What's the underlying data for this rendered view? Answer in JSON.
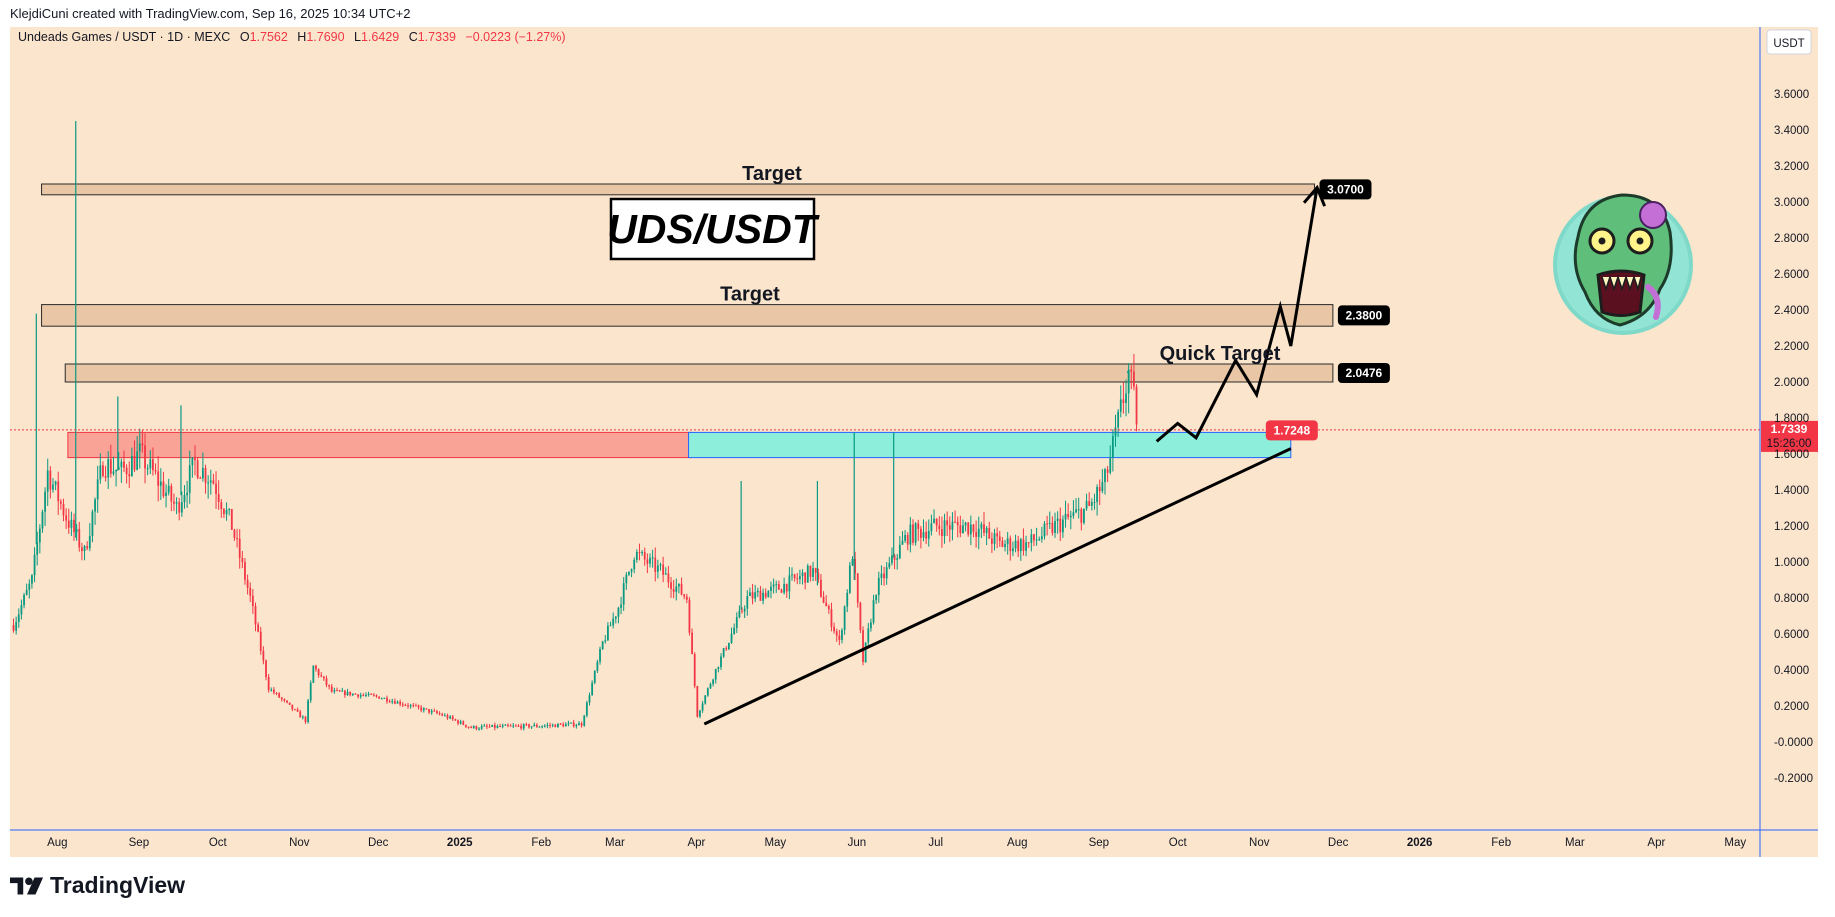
{
  "credit": "KlejdiCuni created with TradingView.com, Sep 16, 2025 10:34 UTC+2",
  "brand": "TradingView",
  "legend": {
    "symbol": "Undeads Games / USDT · 1D · MEXC",
    "open_label": "O",
    "open": "1.7562",
    "high_label": "H",
    "high": "1.7690",
    "low_label": "L",
    "low": "1.6429",
    "close_label": "C",
    "close": "1.7339",
    "change": "−0.0223 (−1.27%)"
  },
  "currency": "USDT",
  "colors": {
    "background": "#fbe5cc",
    "up": "#089981",
    "down": "#f23645",
    "supply_zone": "#f8a396",
    "demand_zone": "#8ceedb",
    "target_band": "#e8c6a6",
    "axis_line": "#2962ff"
  },
  "chart_data": {
    "type": "candlestick",
    "x_ticks": [
      "Aug",
      "Sep",
      "Oct",
      "Nov",
      "Dec",
      "2025",
      "Feb",
      "Mar",
      "Apr",
      "May",
      "Jun",
      "Jul",
      "Aug",
      "Sep",
      "Oct",
      "Nov",
      "Dec",
      "2026",
      "Feb",
      "Mar",
      "Apr",
      "May"
    ],
    "y_ticks": [
      "3.6000",
      "3.4000",
      "3.2000",
      "3.0000",
      "2.8000",
      "2.6000",
      "2.4000",
      "2.2000",
      "2.0000",
      "1.8000",
      "1.6000",
      "1.4000",
      "1.2000",
      "1.0000",
      "0.8000",
      "0.6000",
      "0.4000",
      "0.2000",
      "-0.0000",
      "-0.2000"
    ],
    "ylim": [
      -0.25,
      3.75
    ],
    "price_path": [
      {
        "date": "2024-07-15",
        "close": 0.65
      },
      {
        "date": "2024-07-22",
        "close": 0.9
      },
      {
        "date": "2024-07-28",
        "close": 1.5
      },
      {
        "date": "2024-08-04",
        "close": 1.25
      },
      {
        "date": "2024-08-11",
        "close": 1.05
      },
      {
        "date": "2024-08-18",
        "close": 1.55
      },
      {
        "date": "2024-08-25",
        "close": 1.5
      },
      {
        "date": "2024-09-01",
        "close": 1.6
      },
      {
        "date": "2024-09-08",
        "close": 1.45
      },
      {
        "date": "2024-09-15",
        "close": 1.3
      },
      {
        "date": "2024-09-22",
        "close": 1.55
      },
      {
        "date": "2024-09-29",
        "close": 1.45
      },
      {
        "date": "2024-10-06",
        "close": 1.2
      },
      {
        "date": "2024-10-13",
        "close": 0.8
      },
      {
        "date": "2024-10-20",
        "close": 0.3
      },
      {
        "date": "2024-11-03",
        "close": 0.12
      },
      {
        "date": "2024-11-06",
        "close": 0.42
      },
      {
        "date": "2024-11-13",
        "close": 0.28
      },
      {
        "date": "2024-12-01",
        "close": 0.25
      },
      {
        "date": "2024-12-25",
        "close": 0.15
      },
      {
        "date": "2025-01-05",
        "close": 0.08
      },
      {
        "date": "2025-02-01",
        "close": 0.09
      },
      {
        "date": "2025-02-16",
        "close": 0.1
      },
      {
        "date": "2025-02-24",
        "close": 0.55
      },
      {
        "date": "2025-03-02",
        "close": 0.75
      },
      {
        "date": "2025-03-08",
        "close": 1.05
      },
      {
        "date": "2025-03-18",
        "close": 0.95
      },
      {
        "date": "2025-03-28",
        "close": 0.8
      },
      {
        "date": "2025-04-01",
        "close": 0.15
      },
      {
        "date": "2025-04-08",
        "close": 0.4
      },
      {
        "date": "2025-04-20",
        "close": 0.8
      },
      {
        "date": "2025-05-01",
        "close": 0.85
      },
      {
        "date": "2025-05-15",
        "close": 0.95
      },
      {
        "date": "2025-05-25",
        "close": 0.55
      },
      {
        "date": "2025-05-30",
        "close": 1.05
      },
      {
        "date": "2025-06-03",
        "close": 0.45
      },
      {
        "date": "2025-06-08",
        "close": 0.85
      },
      {
        "date": "2025-06-20",
        "close": 1.15
      },
      {
        "date": "2025-07-01",
        "close": 1.2
      },
      {
        "date": "2025-07-15",
        "close": 1.2
      },
      {
        "date": "2025-07-25",
        "close": 1.1
      },
      {
        "date": "2025-08-05",
        "close": 1.1
      },
      {
        "date": "2025-08-15",
        "close": 1.2
      },
      {
        "date": "2025-08-28",
        "close": 1.3
      },
      {
        "date": "2025-09-03",
        "close": 1.45
      },
      {
        "date": "2025-09-07",
        "close": 1.7
      },
      {
        "date": "2025-09-12",
        "close": 2.05
      },
      {
        "date": "2025-09-16",
        "close": 1.7339
      }
    ],
    "spikes": [
      {
        "date": "2024-07-24",
        "high": 2.38
      },
      {
        "date": "2024-08-08",
        "high": 3.45
      },
      {
        "date": "2024-08-24",
        "high": 1.92
      },
      {
        "date": "2024-09-17",
        "high": 1.87
      },
      {
        "date": "2025-04-18",
        "high": 1.45
      },
      {
        "date": "2025-05-17",
        "high": 1.45
      },
      {
        "date": "2025-05-31",
        "high": 1.72
      },
      {
        "date": "2025-06-15",
        "high": 1.72
      },
      {
        "date": "2025-09-12",
        "high": 2.06
      }
    ],
    "zones": [
      {
        "kind": "target",
        "from": "2024-07-26",
        "to": "2025-11-22",
        "low": 3.04,
        "high": 3.1,
        "label": "Target",
        "tag": "3.0700"
      },
      {
        "kind": "target",
        "from": "2024-07-26",
        "to": "2025-11-29",
        "low": 2.31,
        "high": 2.43,
        "label": "Target",
        "tag": "2.3800"
      },
      {
        "kind": "target",
        "from": "2024-08-04",
        "to": "2025-11-29",
        "low": 2.0,
        "high": 2.1,
        "label": "Quick Target",
        "tag": "2.0476"
      },
      {
        "kind": "supply",
        "from": "2024-08-05",
        "to": "2025-03-30",
        "low": 1.58,
        "high": 1.72
      },
      {
        "kind": "demand",
        "from": "2025-03-29",
        "to": "2025-11-13",
        "low": 1.58,
        "high": 1.72,
        "tag": "1.7248"
      }
    ],
    "trendline": {
      "from_date": "2025-04-04",
      "from_price": 0.1,
      "to_date": "2025-11-13",
      "to_price": 1.63
    },
    "projection": [
      {
        "date": "2025-09-23",
        "price": 1.67
      },
      {
        "date": "2025-10-01",
        "price": 1.77
      },
      {
        "date": "2025-10-08",
        "price": 1.69
      },
      {
        "date": "2025-10-23",
        "price": 2.12
      },
      {
        "date": "2025-10-31",
        "price": 1.93
      },
      {
        "date": "2025-11-09",
        "price": 2.42
      },
      {
        "date": "2025-11-13",
        "price": 2.2
      },
      {
        "date": "2025-11-23",
        "price": 3.08
      }
    ],
    "last_price": {
      "value": "1.7339",
      "countdown": "15:26:00"
    },
    "title_box": "UDS/USDT"
  }
}
